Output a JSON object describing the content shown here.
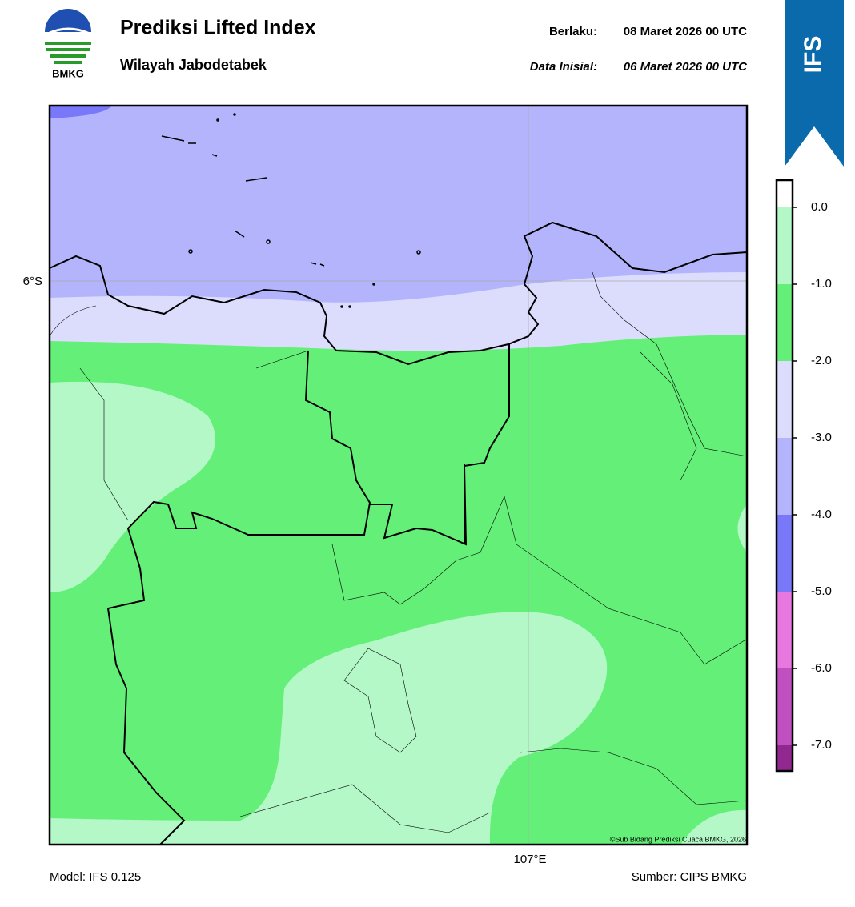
{
  "header": {
    "logo_text": "BMKG",
    "title": "Prediksi Lifted Index",
    "subtitle": "Wilayah Jabodetabek",
    "valid_label": "Berlaku:",
    "valid_time": "08 Maret 2026 00 UTC",
    "init_label": "Data Inisial:",
    "init_time": "06 Maret 2026 00 UTC",
    "badge": "IFS"
  },
  "map": {
    "lat_label": "6°S",
    "lon_label": "107°E",
    "credit": "©Sub Bidang Prediksi Cuaca BMKG, 2026"
  },
  "colorbar": {
    "ticks": [
      {
        "value": 0,
        "label": "0.0"
      },
      {
        "value": -1,
        "label": "-1.0"
      },
      {
        "value": -2,
        "label": "-2.0"
      },
      {
        "value": -3,
        "label": "-3.0"
      },
      {
        "value": -4,
        "label": "-4.0"
      },
      {
        "value": -5,
        "label": "-5.0"
      },
      {
        "value": -6,
        "label": "-6.0"
      },
      {
        "value": -7,
        "label": "-7.0"
      }
    ],
    "colors": [
      "#ffffff",
      "#b4f8c8",
      "#64f078",
      "#dcdcfc",
      "#b4b4fc",
      "#7878f8",
      "#e878e0",
      "#c050c0",
      "#902890"
    ]
  },
  "footer": {
    "model": "Model: IFS 0.125",
    "source": "Sumber: CIPS BMKG"
  }
}
